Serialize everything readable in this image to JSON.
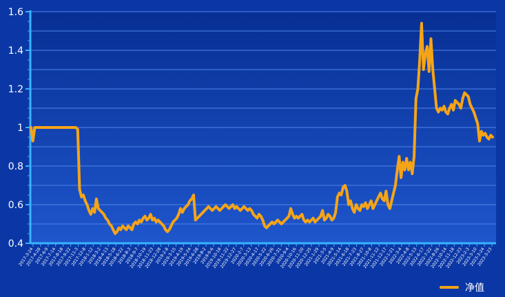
{
  "chart_data": {
    "type": "line",
    "series": [
      {
        "name": "净值",
        "color": "#f5a418",
        "values": [
          1.0,
          0.93,
          1.0,
          1.0,
          1.0,
          1.0,
          1.0,
          1.0,
          1.0,
          1.0,
          1.0,
          1.0,
          1.0,
          1.0,
          1.0,
          1.0,
          1.0,
          1.0,
          1.0,
          1.0,
          1.0,
          1.0,
          1.0,
          1.0,
          1.0,
          0.99,
          0.68,
          0.64,
          0.65,
          0.62,
          0.6,
          0.57,
          0.55,
          0.58,
          0.56,
          0.63,
          0.58,
          0.57,
          0.56,
          0.55,
          0.53,
          0.52,
          0.5,
          0.49,
          0.47,
          0.45,
          0.46,
          0.48,
          0.47,
          0.49,
          0.48,
          0.47,
          0.49,
          0.48,
          0.47,
          0.5,
          0.51,
          0.5,
          0.52,
          0.51,
          0.53,
          0.54,
          0.52,
          0.53,
          0.55,
          0.52,
          0.53,
          0.51,
          0.52,
          0.51,
          0.5,
          0.49,
          0.47,
          0.46,
          0.47,
          0.49,
          0.51,
          0.52,
          0.53,
          0.55,
          0.58,
          0.56,
          0.58,
          0.59,
          0.6,
          0.62,
          0.63,
          0.65,
          0.52,
          0.53,
          0.54,
          0.55,
          0.56,
          0.57,
          0.58,
          0.59,
          0.58,
          0.57,
          0.58,
          0.59,
          0.58,
          0.57,
          0.58,
          0.59,
          0.6,
          0.59,
          0.58,
          0.59,
          0.6,
          0.58,
          0.59,
          0.58,
          0.57,
          0.58,
          0.59,
          0.58,
          0.57,
          0.58,
          0.57,
          0.55,
          0.54,
          0.53,
          0.55,
          0.54,
          0.52,
          0.49,
          0.48,
          0.49,
          0.5,
          0.51,
          0.5,
          0.51,
          0.52,
          0.51,
          0.5,
          0.51,
          0.52,
          0.53,
          0.54,
          0.58,
          0.55,
          0.53,
          0.54,
          0.53,
          0.54,
          0.55,
          0.52,
          0.51,
          0.52,
          0.51,
          0.52,
          0.53,
          0.51,
          0.52,
          0.53,
          0.54,
          0.57,
          0.52,
          0.53,
          0.55,
          0.54,
          0.52,
          0.53,
          0.56,
          0.64,
          0.66,
          0.65,
          0.69,
          0.7,
          0.67,
          0.6,
          0.62,
          0.58,
          0.56,
          0.6,
          0.58,
          0.57,
          0.6,
          0.59,
          0.61,
          0.58,
          0.6,
          0.62,
          0.58,
          0.6,
          0.62,
          0.64,
          0.66,
          0.63,
          0.62,
          0.67,
          0.6,
          0.58,
          0.62,
          0.66,
          0.7,
          0.78,
          0.85,
          0.74,
          0.82,
          0.78,
          0.84,
          0.78,
          0.82,
          0.76,
          0.85,
          1.15,
          1.2,
          1.35,
          1.54,
          1.3,
          1.38,
          1.42,
          1.29,
          1.46,
          1.3,
          1.2,
          1.1,
          1.08,
          1.1,
          1.09,
          1.11,
          1.08,
          1.07,
          1.1,
          1.12,
          1.09,
          1.14,
          1.13,
          1.12,
          1.1,
          1.15,
          1.18,
          1.17,
          1.16,
          1.12,
          1.1,
          1.08,
          1.05,
          1.02,
          0.93,
          0.98,
          0.96,
          0.97,
          0.95,
          0.94,
          0.96,
          0.95
        ]
      }
    ],
    "x_tick_labels": [
      "2017-3-24",
      "2017-4-28",
      "2017-6-9",
      "2017-7-14",
      "2017-8-18",
      "2017-9-22",
      "2017-11-3",
      "2017-12-8",
      "2018-1-12",
      "2018-3-2",
      "2018-4-13",
      "2018-5-18",
      "2018-6-22",
      "2018-8-3",
      "2018-9-7",
      "2018-10-19",
      "2018-11-23",
      "2018-12-28",
      "2019-2-8",
      "2019-3-15",
      "2019-4-19",
      "2019-5-24",
      "2019-6-28",
      "2019-8-2",
      "2019-9-6",
      "2019-10-18",
      "2019-11-22",
      "2019-12-27",
      "2020-2-7",
      "2020-3-13",
      "2020-4-17",
      "2020-5-22",
      "2020-6-26",
      "2020-7-31",
      "2020-9-4",
      "2020-10-16",
      "2020-11-20",
      "2020-12-25",
      "2021-1-29",
      "2021-3-5",
      "2021-4-9",
      "2021-5-14",
      "2021-6-18",
      "2021-7-23",
      "2021-8-27",
      "2021-10-8",
      "2021-11-12",
      "2021-12-17",
      "2022-1-21",
      "2022-3-4",
      "2022-4-8",
      "2022-5-13",
      "2022-6-17",
      "2022-7-22",
      "2022-8-26",
      "2022-10-14",
      "2022-11-18",
      "2022-12-23",
      "2023-2-3",
      "2023-3-10",
      "2023-3-24",
      "2023-3-23"
    ],
    "y_ticks": [
      "0.4",
      "0.6",
      "0.8",
      "1",
      "1.2",
      "1.4",
      "1.6"
    ],
    "ylim": [
      0.4,
      1.6
    ],
    "grid": true,
    "legend": {
      "position": "bottom-right",
      "label": "净值"
    },
    "colors": {
      "background": "#0b37a6",
      "plot_top": "#072f93",
      "plot_bottom": "#1e56cc",
      "grid": "#4f86e8",
      "axis": "#38b3ff",
      "line": "#f5a418"
    },
    "title": "",
    "xlabel": "",
    "ylabel": ""
  }
}
